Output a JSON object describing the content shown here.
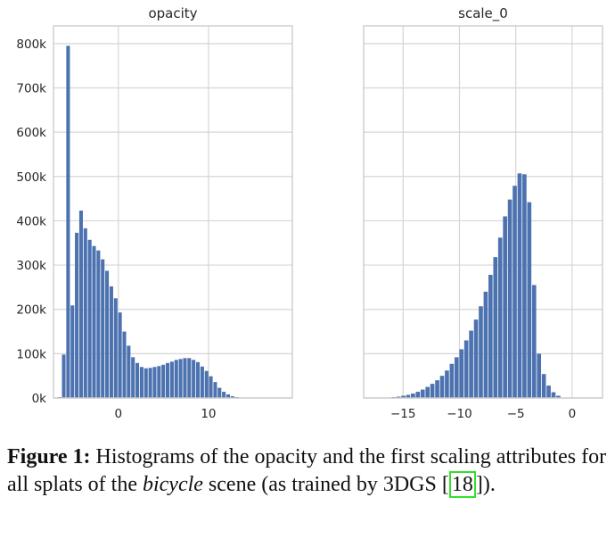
{
  "chart_data": [
    {
      "type": "bar",
      "title": "opacity",
      "xlim": [
        -7.2,
        19.3
      ],
      "ylim": [
        0,
        840000
      ],
      "yticks": [
        0,
        100000,
        200000,
        300000,
        400000,
        500000,
        600000,
        700000,
        800000
      ],
      "ytick_labels": [
        "0k",
        "100k",
        "200k",
        "300k",
        "400k",
        "500k",
        "600k",
        "700k",
        "800k"
      ],
      "xticks": [
        0,
        10
      ],
      "xtick_labels": [
        "0",
        "10"
      ],
      "grid": true,
      "bin_width": 0.48,
      "x": [
        -6.54,
        -6.06,
        -5.58,
        -5.1,
        -4.62,
        -4.14,
        -3.66,
        -3.18,
        -2.7,
        -2.22,
        -1.74,
        -1.26,
        -0.78,
        -0.3,
        0.18,
        0.66,
        1.14,
        1.62,
        2.1,
        2.58,
        3.06,
        3.54,
        4.02,
        4.5,
        4.98,
        5.46,
        5.94,
        6.42,
        6.9,
        7.38,
        7.86,
        8.34,
        8.82,
        9.3,
        9.78,
        10.26,
        10.74,
        11.22,
        11.7,
        12.18,
        12.66,
        13.14,
        13.62,
        14.1
      ],
      "values": [
        2000,
        98000,
        795000,
        209000,
        373000,
        423000,
        383000,
        357000,
        343000,
        333000,
        313000,
        287000,
        252000,
        225000,
        193000,
        150000,
        118000,
        92000,
        79000,
        70000,
        67000,
        68000,
        70000,
        72000,
        75000,
        79000,
        82000,
        86000,
        88000,
        90000,
        90000,
        86000,
        81000,
        71000,
        61000,
        49000,
        36000,
        23000,
        14000,
        8000,
        4000,
        2000,
        1000,
        500
      ]
    },
    {
      "type": "bar",
      "title": "scale_0",
      "xlim": [
        -18.5,
        2.7
      ],
      "ylim": [
        0,
        840000
      ],
      "xticks": [
        -15,
        -10,
        -5,
        0
      ],
      "xtick_labels": [
        "−15",
        "−10",
        "−5",
        "0"
      ],
      "grid": true,
      "bin_width": 0.43,
      "x": [
        -16.7,
        -16.27,
        -15.84,
        -15.41,
        -14.98,
        -14.55,
        -14.12,
        -13.69,
        -13.26,
        -12.83,
        -12.4,
        -11.97,
        -11.54,
        -11.11,
        -10.68,
        -10.25,
        -9.82,
        -9.39,
        -8.96,
        -8.53,
        -8.1,
        -7.67,
        -7.24,
        -6.81,
        -6.38,
        -5.95,
        -5.52,
        -5.09,
        -4.66,
        -4.23,
        -3.8,
        -3.37,
        -2.94,
        -2.51,
        -2.08,
        -1.65,
        -1.22,
        -0.79
      ],
      "values": [
        500,
        1000,
        2000,
        3000,
        5000,
        7000,
        10000,
        14000,
        19000,
        25000,
        32000,
        40000,
        50000,
        62000,
        77000,
        92000,
        110000,
        130000,
        152000,
        177000,
        207000,
        240000,
        278000,
        318000,
        362000,
        410000,
        448000,
        479000,
        507000,
        505000,
        442000,
        255000,
        100000,
        54000,
        28000,
        13000,
        5000,
        1000
      ]
    }
  ],
  "caption": {
    "label": "Figure 1:",
    "text_before": " Histograms of the opacity and the first scaling attributes for all splats of the ",
    "italic": "bicycle",
    "text_after_italic": " scene (as trained by 3DGS [",
    "ref": "18",
    "text_end": "])."
  }
}
